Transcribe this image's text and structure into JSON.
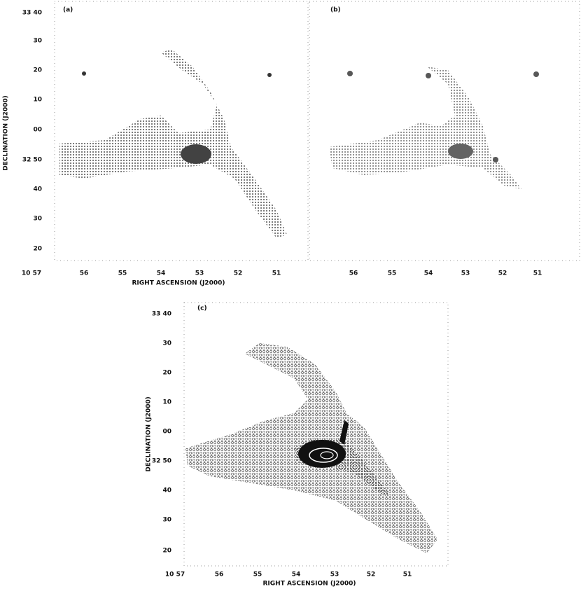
{
  "panels": [
    {
      "label": "(a)",
      "y_axis_label": "DECLINATION (J2000)",
      "x_axis_label": "RIGHT ASCENSION (J2000)",
      "y_ticks": [
        "33 40",
        "30",
        "20",
        "10",
        "00",
        "32 50",
        "40",
        "30",
        "20"
      ],
      "x_ticks": [
        "10 57",
        "56",
        "55",
        "54",
        "53",
        "52",
        "51"
      ]
    },
    {
      "label": "(b)",
      "x_ticks": [
        "56",
        "55",
        "54",
        "53",
        "52",
        "51"
      ]
    },
    {
      "label": "(c)",
      "y_axis_label": "DECLINATION (J2000)",
      "x_axis_label": "RIGHT ASCENSION (J2000)",
      "y_ticks": [
        "33 40",
        "30",
        "20",
        "10",
        "00",
        "32 50",
        "40",
        "30",
        "20"
      ],
      "x_ticks": [
        "10 57",
        "56",
        "55",
        "54",
        "53",
        "52",
        "51"
      ]
    }
  ]
}
